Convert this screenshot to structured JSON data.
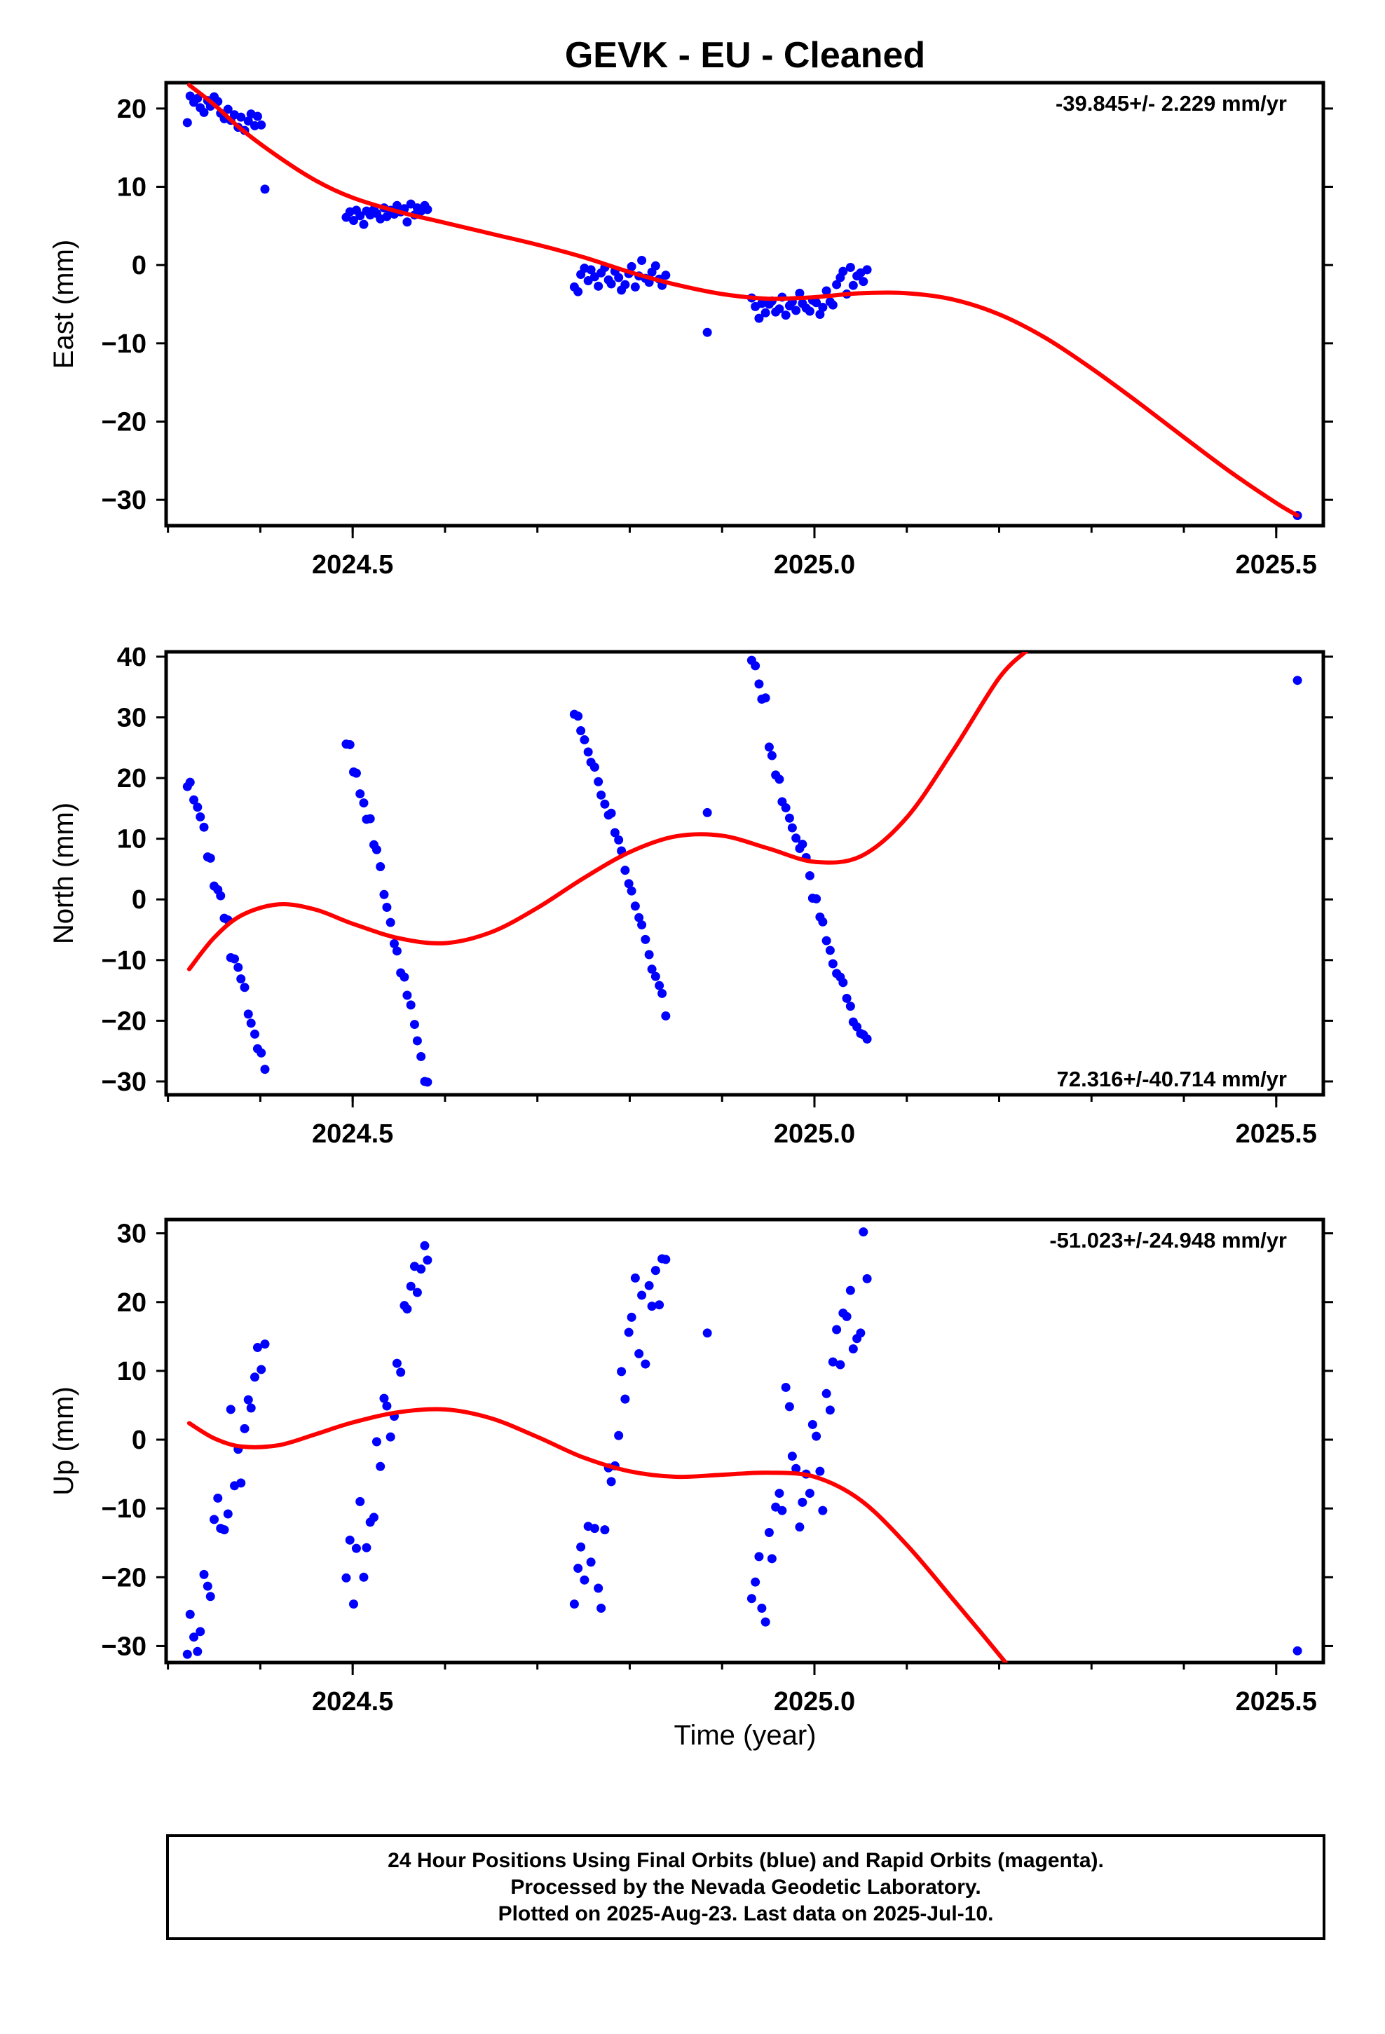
{
  "title": "GEVK  - EU - Cleaned",
  "colors": {
    "data_points": "#0000ff",
    "fit_curve": "#ff0000",
    "frame": "#000000"
  },
  "xlabel": "Time (year)",
  "footer": {
    "line1": "24 Hour Positions Using Final Orbits (blue) and Rapid Orbits (magenta).",
    "line2": "Processed by the Nevada Geodetic Laboratory.",
    "line3": "Plotted on 2025-Aug-23. Last data on 2025-Jul-10."
  },
  "chart_data": [
    {
      "type": "scatter",
      "ylabel": "East (mm)",
      "rate": "-39.845+/- 2.229 mm/yr",
      "xlim": [
        2024.298,
        2025.551
      ],
      "ylim": [
        -33.3,
        23.3
      ],
      "xticks": [
        2024.5,
        2025.0,
        2025.5
      ],
      "xtick_labels": [
        "2024.5",
        "2025.0",
        "2025.5"
      ],
      "yticks": [
        -30,
        -20,
        -10,
        0,
        10,
        20
      ],
      "ytick_labels": [
        "−30",
        "−20",
        "−10",
        "0",
        "10",
        "20"
      ],
      "series": [
        {
          "kind": "points",
          "x": [
            2024.321,
            2024.324,
            2024.328,
            2024.332,
            2024.335,
            2024.339,
            2024.343,
            2024.346,
            2024.35,
            2024.354,
            2024.357,
            2024.361,
            2024.365,
            2024.368,
            2024.372,
            2024.376,
            2024.379,
            2024.383,
            2024.387,
            2024.39,
            2024.394,
            2024.397,
            2024.401,
            2024.405,
            2024.493,
            2024.497,
            2024.501,
            2024.504,
            2024.508,
            2024.512,
            2024.515,
            2024.519,
            2024.523,
            2024.526,
            2024.53,
            2024.534,
            2024.537,
            2024.541,
            2024.545,
            2024.548,
            2024.552,
            2024.556,
            2024.559,
            2024.563,
            2024.567,
            2024.57,
            2024.574,
            2024.578,
            2024.581,
            2024.74,
            2024.744,
            2024.747,
            2024.751,
            2024.755,
            2024.758,
            2024.762,
            2024.766,
            2024.769,
            2024.773,
            2024.777,
            2024.78,
            2024.784,
            2024.788,
            2024.791,
            2024.795,
            2024.799,
            2024.802,
            2024.806,
            2024.81,
            2024.813,
            2024.817,
            2024.821,
            2024.824,
            2024.828,
            2024.832,
            2024.835,
            2024.839,
            2024.884,
            2024.932,
            2024.936,
            2024.94,
            2024.943,
            2024.947,
            2024.951,
            2024.954,
            2024.958,
            2024.962,
            2024.965,
            2024.969,
            2024.973,
            2024.976,
            2024.98,
            2024.984,
            2024.987,
            2024.991,
            2024.995,
            2024.998,
            2025.002,
            2025.006,
            2025.009,
            2025.013,
            2025.017,
            2025.02,
            2025.024,
            2025.028,
            2025.031,
            2025.035,
            2025.039,
            2025.042,
            2025.046,
            2025.05,
            2025.053,
            2025.057,
            2025.523
          ],
          "y": [
            18.2,
            21.6,
            20.8,
            21.3,
            20.1,
            19.5,
            21.0,
            20.3,
            21.5,
            20.9,
            19.4,
            18.7,
            19.9,
            18.5,
            19.2,
            17.6,
            18.9,
            17.2,
            18.4,
            19.3,
            17.8,
            19.0,
            17.9,
            9.7,
            6.1,
            6.8,
            5.7,
            7.0,
            6.3,
            5.2,
            6.9,
            6.4,
            7.1,
            6.6,
            5.9,
            7.3,
            6.2,
            7.0,
            6.5,
            7.6,
            6.8,
            7.2,
            5.5,
            7.8,
            6.4,
            7.3,
            6.9,
            7.6,
            7.1,
            -2.8,
            -3.4,
            -1.2,
            -0.4,
            -2.0,
            -0.6,
            -1.5,
            -2.7,
            -1.0,
            -0.3,
            -1.9,
            -2.4,
            -0.8,
            -1.6,
            -3.2,
            -2.5,
            -1.1,
            -0.2,
            -2.8,
            -1.4,
            0.6,
            -1.7,
            -2.2,
            -0.9,
            -0.1,
            -1.8,
            -2.6,
            -1.3,
            -8.6,
            -4.2,
            -5.3,
            -6.8,
            -4.9,
            -6.1,
            -5.0,
            -4.6,
            -6.0,
            -5.6,
            -4.1,
            -6.4,
            -5.2,
            -4.7,
            -5.8,
            -3.6,
            -4.9,
            -5.5,
            -5.9,
            -4.5,
            -4.8,
            -6.3,
            -5.4,
            -3.3,
            -4.7,
            -5.1,
            -2.5,
            -1.6,
            -0.8,
            -3.7,
            -0.3,
            -2.6,
            -1.4,
            -1.0,
            -2.1,
            -0.6,
            -32.0
          ]
        },
        {
          "kind": "fit",
          "x": [
            2024.323,
            2024.35,
            2024.38,
            2024.42,
            2024.46,
            2024.5,
            2024.55,
            2024.6,
            2024.65,
            2024.7,
            2024.75,
            2024.8,
            2024.85,
            2024.9,
            2024.95,
            2025.0,
            2025.05,
            2025.1,
            2025.15,
            2025.2,
            2025.25,
            2025.3,
            2025.35,
            2025.4,
            2025.45,
            2025.5,
            2025.523
          ],
          "y": [
            23.0,
            20.5,
            17.3,
            13.8,
            10.8,
            8.6,
            6.8,
            5.4,
            4.0,
            2.6,
            1.0,
            -0.9,
            -2.5,
            -3.7,
            -4.3,
            -4.1,
            -3.6,
            -3.6,
            -4.4,
            -6.3,
            -9.3,
            -13.2,
            -17.5,
            -22.0,
            -26.4,
            -30.4,
            -32.0
          ]
        }
      ]
    },
    {
      "type": "scatter",
      "ylabel": "North (mm)",
      "rate": "72.316+/-40.714 mm/yr",
      "xlim": [
        2024.298,
        2025.551
      ],
      "ylim": [
        -32.2,
        40.8
      ],
      "xticks": [
        2024.5,
        2025.0,
        2025.5
      ],
      "xtick_labels": [
        "2024.5",
        "2025.0",
        "2025.5"
      ],
      "yticks": [
        -30,
        -20,
        -10,
        0,
        10,
        20,
        30,
        40
      ],
      "ytick_labels": [
        "−30",
        "−20",
        "−10",
        "0",
        "10",
        "20",
        "30",
        "40"
      ],
      "series": [
        {
          "kind": "points",
          "x": [
            2024.321,
            2024.324,
            2024.328,
            2024.332,
            2024.335,
            2024.339,
            2024.343,
            2024.346,
            2024.35,
            2024.354,
            2024.357,
            2024.361,
            2024.365,
            2024.368,
            2024.372,
            2024.376,
            2024.379,
            2024.383,
            2024.387,
            2024.39,
            2024.394,
            2024.397,
            2024.401,
            2024.405,
            2024.493,
            2024.497,
            2024.501,
            2024.504,
            2024.508,
            2024.512,
            2024.515,
            2024.519,
            2024.523,
            2024.526,
            2024.53,
            2024.534,
            2024.537,
            2024.541,
            2024.545,
            2024.548,
            2024.552,
            2024.556,
            2024.559,
            2024.563,
            2024.567,
            2024.57,
            2024.574,
            2024.578,
            2024.581,
            2024.74,
            2024.744,
            2024.747,
            2024.751,
            2024.755,
            2024.758,
            2024.762,
            2024.766,
            2024.769,
            2024.773,
            2024.777,
            2024.78,
            2024.784,
            2024.788,
            2024.791,
            2024.795,
            2024.799,
            2024.802,
            2024.806,
            2024.81,
            2024.813,
            2024.817,
            2024.821,
            2024.824,
            2024.828,
            2024.832,
            2024.835,
            2024.839,
            2024.884,
            2024.932,
            2024.936,
            2024.94,
            2024.943,
            2024.947,
            2024.951,
            2024.954,
            2024.958,
            2024.962,
            2024.965,
            2024.969,
            2024.973,
            2024.976,
            2024.98,
            2024.984,
            2024.987,
            2024.991,
            2024.995,
            2024.998,
            2025.002,
            2025.006,
            2025.009,
            2025.013,
            2025.017,
            2025.02,
            2025.024,
            2025.028,
            2025.031,
            2025.035,
            2025.039,
            2025.042,
            2025.046,
            2025.05,
            2025.053,
            2025.057,
            2025.523
          ],
          "y": [
            18.6,
            19.3,
            16.4,
            15.2,
            13.6,
            11.9,
            7.0,
            6.8,
            2.2,
            1.6,
            0.6,
            -3.1,
            -3.4,
            -9.6,
            -9.8,
            -11.2,
            -13.1,
            -14.5,
            -18.9,
            -20.4,
            -22.2,
            -24.6,
            -25.3,
            -28.0,
            25.6,
            25.5,
            21.0,
            20.8,
            17.4,
            15.9,
            13.2,
            13.3,
            9.0,
            8.2,
            5.4,
            0.8,
            -1.3,
            -3.8,
            -7.3,
            -8.5,
            -12.1,
            -12.8,
            -15.8,
            -17.4,
            -20.6,
            -23.3,
            -25.9,
            -30.0,
            -30.1,
            30.5,
            30.2,
            27.8,
            26.3,
            24.3,
            22.6,
            21.8,
            19.4,
            17.2,
            15.7,
            13.9,
            14.2,
            11.0,
            9.8,
            8.0,
            4.8,
            2.6,
            1.4,
            -1.1,
            -3.0,
            -4.2,
            -6.6,
            -9.1,
            -11.5,
            -12.7,
            -14.2,
            -15.5,
            -19.2,
            14.3,
            39.4,
            38.5,
            35.5,
            33.0,
            33.2,
            25.1,
            23.7,
            20.5,
            19.8,
            16.1,
            15.1,
            13.4,
            11.8,
            10.1,
            8.4,
            9.1,
            6.9,
            3.9,
            0.2,
            0.1,
            -2.9,
            -3.7,
            -6.8,
            -8.4,
            -10.6,
            -12.2,
            -12.8,
            -13.7,
            -16.3,
            -17.6,
            -20.2,
            -21.0,
            -22.1,
            -22.3,
            -23.0,
            36.1
          ]
        },
        {
          "kind": "fit",
          "x": [
            2024.323,
            2024.35,
            2024.38,
            2024.42,
            2024.46,
            2024.5,
            2024.55,
            2024.6,
            2024.65,
            2024.7,
            2024.75,
            2024.8,
            2024.85,
            2024.9,
            2024.95,
            2025.0,
            2025.05,
            2025.1,
            2025.15,
            2025.2,
            2025.23
          ],
          "y": [
            -11.5,
            -6.3,
            -2.6,
            -0.8,
            -1.7,
            -4.0,
            -6.4,
            -7.2,
            -5.4,
            -1.4,
            3.5,
            7.8,
            10.4,
            10.5,
            8.4,
            6.2,
            7.1,
            13.5,
            24.5,
            36.5,
            41.0
          ]
        }
      ]
    },
    {
      "type": "scatter",
      "ylabel": "Up (mm)",
      "rate": "-51.023+/-24.948 mm/yr",
      "xlim": [
        2024.298,
        2025.551
      ],
      "ylim": [
        -32.4,
        32.0
      ],
      "xticks": [
        2024.5,
        2025.0,
        2025.5
      ],
      "xtick_labels": [
        "2024.5",
        "2025.0",
        "2025.5"
      ],
      "yticks": [
        -30,
        -20,
        -10,
        0,
        10,
        20,
        30
      ],
      "ytick_labels": [
        "−30",
        "−20",
        "−10",
        "0",
        "10",
        "20",
        "30"
      ],
      "series": [
        {
          "kind": "points",
          "x": [
            2024.321,
            2024.324,
            2024.328,
            2024.332,
            2024.335,
            2024.339,
            2024.343,
            2024.346,
            2024.35,
            2024.354,
            2024.357,
            2024.361,
            2024.365,
            2024.368,
            2024.372,
            2024.376,
            2024.379,
            2024.383,
            2024.387,
            2024.39,
            2024.394,
            2024.397,
            2024.401,
            2024.405,
            2024.493,
            2024.497,
            2024.501,
            2024.504,
            2024.508,
            2024.512,
            2024.515,
            2024.519,
            2024.523,
            2024.526,
            2024.53,
            2024.534,
            2024.537,
            2024.541,
            2024.545,
            2024.548,
            2024.552,
            2024.556,
            2024.559,
            2024.563,
            2024.567,
            2024.57,
            2024.574,
            2024.578,
            2024.581,
            2024.74,
            2024.744,
            2024.747,
            2024.751,
            2024.755,
            2024.758,
            2024.762,
            2024.766,
            2024.769,
            2024.773,
            2024.777,
            2024.78,
            2024.784,
            2024.788,
            2024.791,
            2024.795,
            2024.799,
            2024.802,
            2024.806,
            2024.81,
            2024.813,
            2024.817,
            2024.821,
            2024.824,
            2024.828,
            2024.832,
            2024.835,
            2024.839,
            2024.884,
            2024.932,
            2024.936,
            2024.94,
            2024.943,
            2024.947,
            2024.951,
            2024.954,
            2024.958,
            2024.962,
            2024.965,
            2024.969,
            2024.973,
            2024.976,
            2024.98,
            2024.984,
            2024.987,
            2024.991,
            2024.995,
            2024.998,
            2025.002,
            2025.006,
            2025.009,
            2025.013,
            2025.017,
            2025.02,
            2025.024,
            2025.028,
            2025.031,
            2025.035,
            2025.039,
            2025.042,
            2025.046,
            2025.05,
            2025.053,
            2025.057,
            2025.523
          ],
          "y": [
            -31.2,
            -25.4,
            -28.7,
            -30.8,
            -27.9,
            -19.6,
            -21.3,
            -22.8,
            -11.6,
            -8.5,
            -12.9,
            -13.1,
            -10.8,
            4.4,
            -6.7,
            -1.4,
            -6.3,
            1.6,
            5.8,
            4.6,
            9.1,
            13.4,
            10.2,
            13.9,
            -20.1,
            -14.6,
            -23.9,
            -15.8,
            -9.0,
            -20.0,
            -15.7,
            -12.0,
            -11.3,
            -0.3,
            -3.9,
            6.0,
            4.9,
            0.4,
            3.4,
            11.1,
            9.8,
            19.5,
            19.0,
            22.3,
            25.2,
            21.4,
            24.8,
            28.2,
            26.1,
            -23.9,
            -18.7,
            -15.6,
            -20.4,
            -12.6,
            -17.8,
            -12.9,
            -21.6,
            -24.5,
            -13.1,
            -4.1,
            -6.1,
            -3.8,
            0.6,
            9.9,
            5.9,
            15.6,
            17.8,
            23.5,
            12.5,
            21.0,
            11.0,
            22.4,
            19.4,
            24.6,
            19.6,
            26.3,
            26.2,
            15.5,
            -23.1,
            -20.7,
            -17.0,
            -24.5,
            -26.5,
            -13.5,
            -17.3,
            -9.8,
            -7.8,
            -10.3,
            7.6,
            4.8,
            -2.4,
            -4.2,
            -12.7,
            -9.1,
            -5.0,
            -7.8,
            2.2,
            0.5,
            -4.6,
            -10.3,
            6.7,
            4.3,
            11.3,
            16.0,
            10.9,
            18.4,
            17.9,
            21.7,
            13.2,
            14.7,
            15.5,
            30.2,
            23.4,
            -30.7
          ]
        },
        {
          "kind": "fit",
          "x": [
            2024.323,
            2024.35,
            2024.38,
            2024.42,
            2024.46,
            2024.5,
            2024.55,
            2024.6,
            2024.65,
            2024.7,
            2024.75,
            2024.8,
            2024.85,
            2024.9,
            2024.95,
            2025.0,
            2025.05,
            2025.1,
            2025.15,
            2025.18,
            2025.207
          ],
          "y": [
            2.4,
            0.2,
            -1.0,
            -0.8,
            0.8,
            2.5,
            4.0,
            4.4,
            3.1,
            0.4,
            -2.6,
            -4.6,
            -5.4,
            -5.1,
            -4.8,
            -5.4,
            -8.8,
            -15.3,
            -23.2,
            -28.0,
            -32.4
          ]
        }
      ]
    }
  ]
}
